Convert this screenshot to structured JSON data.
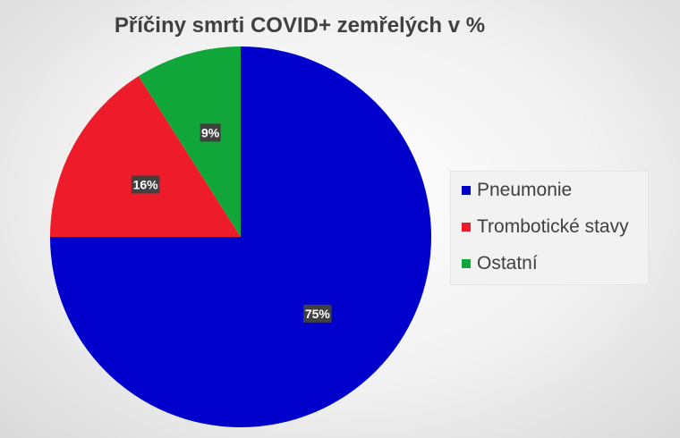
{
  "chart_data": {
    "type": "pie",
    "title": "Příčiny smrti COVID+ zemřelých v %",
    "categories": [
      "Pneumonie",
      "Trombotické stavy",
      "Ostatní"
    ],
    "values": [
      75,
      16,
      9
    ],
    "data_labels": [
      "75%",
      "16%",
      "9%"
    ],
    "colors": [
      "#0000cc",
      "#ee1c2b",
      "#11a63a"
    ],
    "start_angle_deg": 0,
    "direction": "clockwise",
    "legend_position": "right"
  }
}
